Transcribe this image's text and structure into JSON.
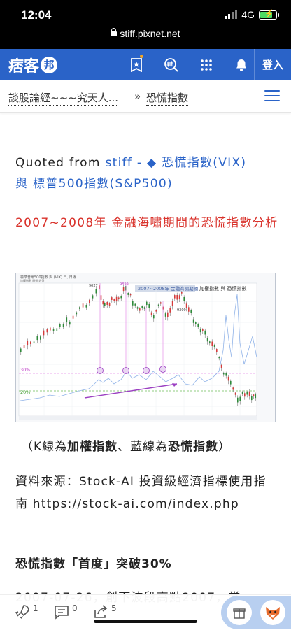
{
  "status": {
    "time": "12:04",
    "network": "4G"
  },
  "browser": {
    "url": "stiff.pixnet.net"
  },
  "nav": {
    "brand_main": "痞客",
    "brand_badge": "邦",
    "login": "登入"
  },
  "breadcrumb": {
    "blog": "談股論經~~~究天人...",
    "separator": "»",
    "category": "恐慌指數"
  },
  "article": {
    "quote_prefix": "Quoted from ",
    "quote_link": "stiff - ◆ 恐慌指數(VIX)",
    "quote_rest": "與 標普500指數(S&P500)",
    "heading_red": "2007~2008年 金融海嘯期間的恐慌指數分析",
    "chart_title": "2007~2008年 金融海嘯期間",
    "chart_legend": "加權指數 與 恐慌指數",
    "chart_header_line1": "標準普爾500指數 與 (VIX) 日, 日線",
    "chart_header_line2": "加權指數 開盤 收盤",
    "chart_label_30": "30%",
    "chart_label_20": "20%",
    "chart_label_a": "9027",
    "chart_label_b": "9859",
    "chart_label_c": "9309",
    "caption_1": "（K線為",
    "caption_2": "加權指數",
    "caption_3": "、藍線為",
    "caption_4": "恐慌指數",
    "caption_5": "）",
    "source": "資料來源：Stock-AI 投資級經濟指標使用指南 https://stock-ai.com/index.php",
    "subheading": "恐慌指數「首度」突破30%",
    "truncated_line": "2007-07-26，創下波段高點2007，當"
  },
  "bottom": {
    "likes": "1",
    "comments": "0",
    "shares": "5"
  },
  "colors": {
    "brand": "#2a63c8",
    "accent_red": "#d9322b",
    "vix_line": "#8fb2e8",
    "marker": "#b24ad6"
  }
}
